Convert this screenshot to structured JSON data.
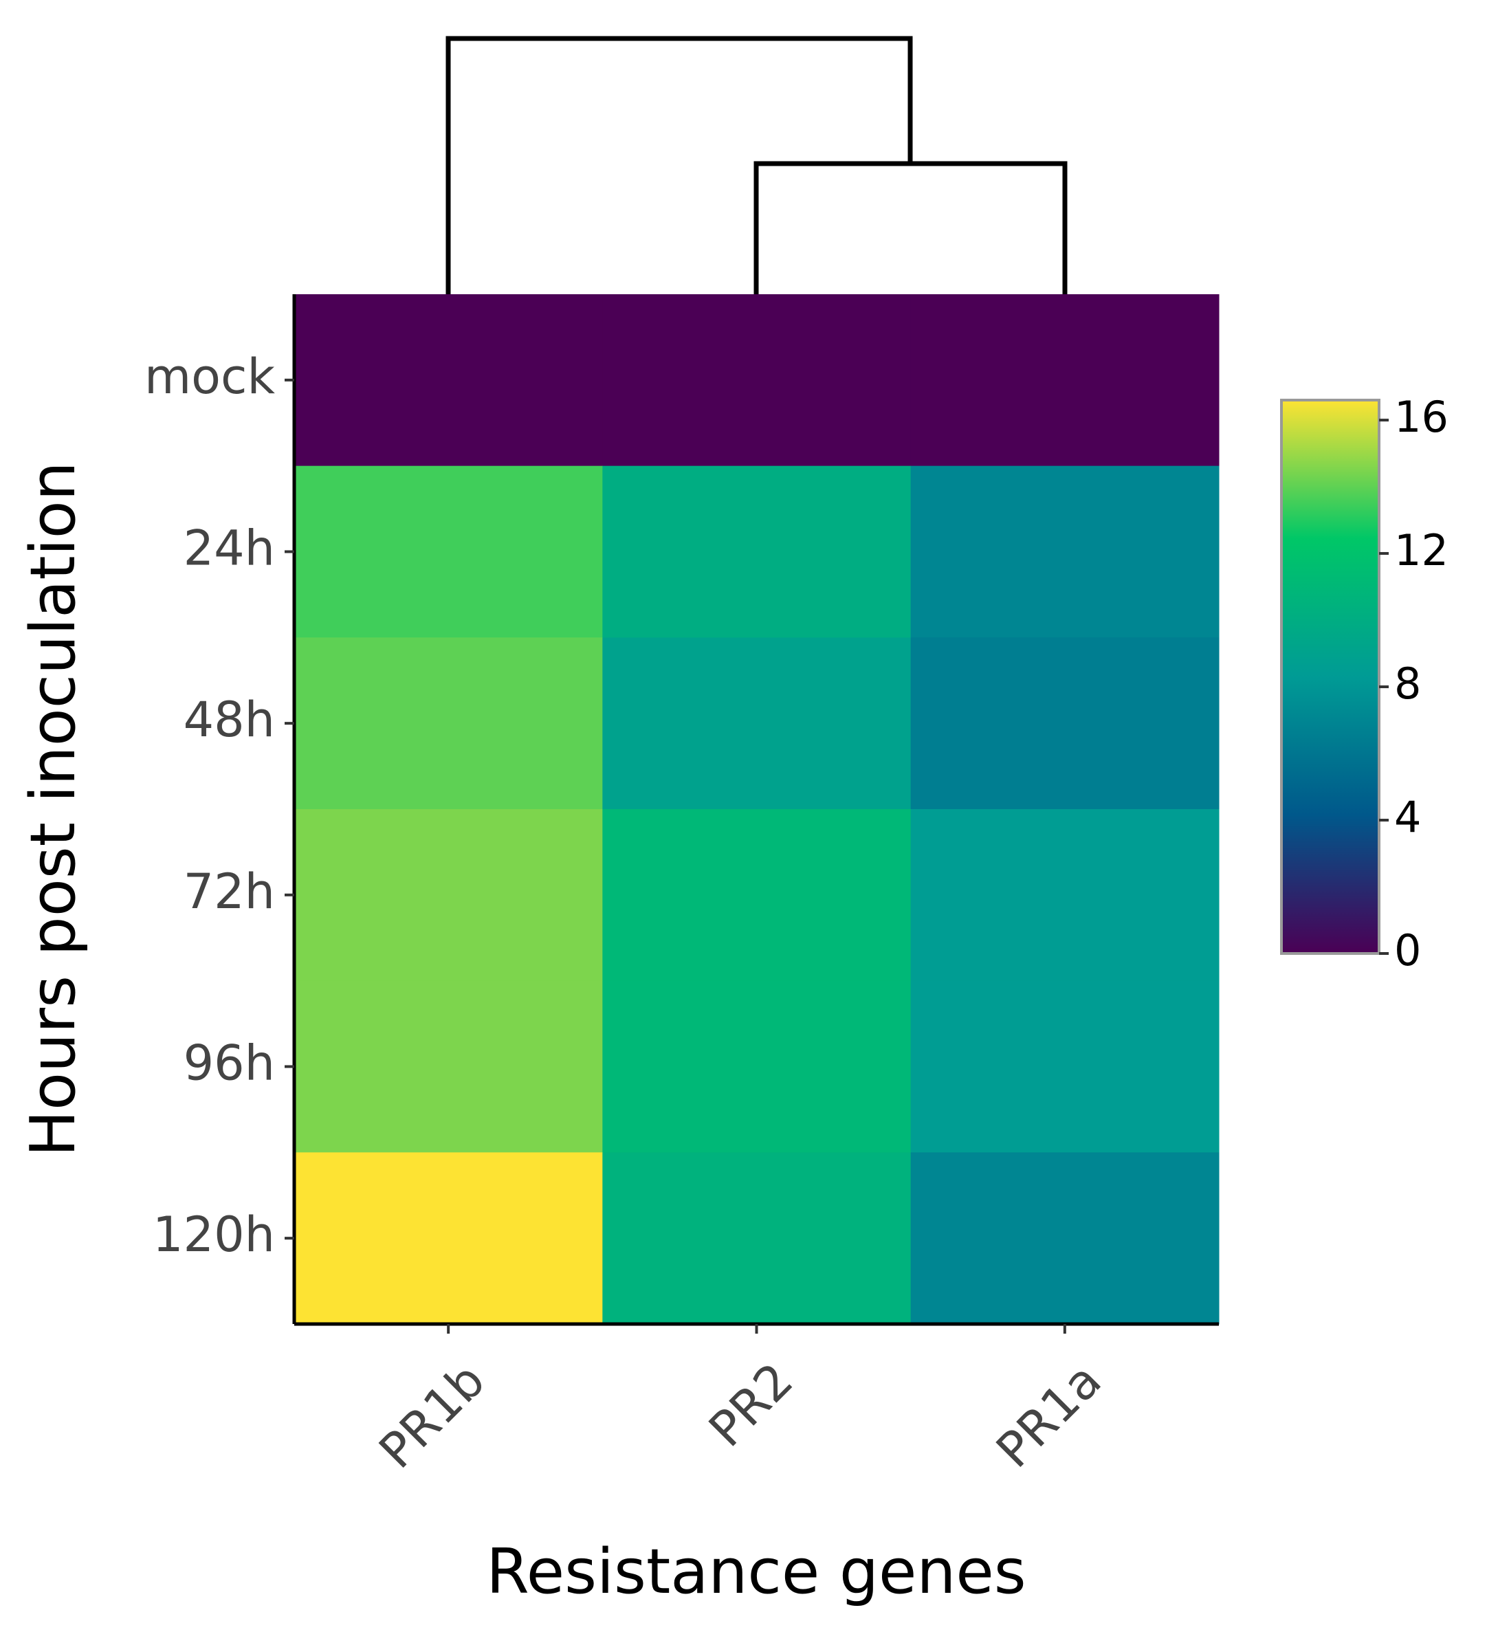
{
  "chart_data": {
    "type": "heatmap",
    "x_title": "Resistance genes",
    "y_title": "Hours post inoculation",
    "x": [
      "PR1b",
      "PR2",
      "PR1a"
    ],
    "y": [
      "mock",
      "24h",
      "48h",
      "72h",
      "96h",
      "120h"
    ],
    "z": [
      [
        0,
        0,
        0
      ],
      [
        13.5,
        10,
        7
      ],
      [
        14,
        9,
        6.5
      ],
      [
        14.5,
        11,
        8.5
      ],
      [
        14.5,
        11,
        8.5
      ],
      [
        16.6,
        10.5,
        7
      ]
    ],
    "zlim": [
      0,
      16.6
    ],
    "colorbar_ticks": [
      0,
      4,
      8,
      12,
      16
    ],
    "colorscale": [
      [
        0,
        "#4b0055"
      ],
      [
        0.25,
        "#00588b"
      ],
      [
        0.5,
        "#009b95"
      ],
      [
        0.75,
        "#00c767"
      ],
      [
        1,
        "#fde333"
      ]
    ]
  }
}
